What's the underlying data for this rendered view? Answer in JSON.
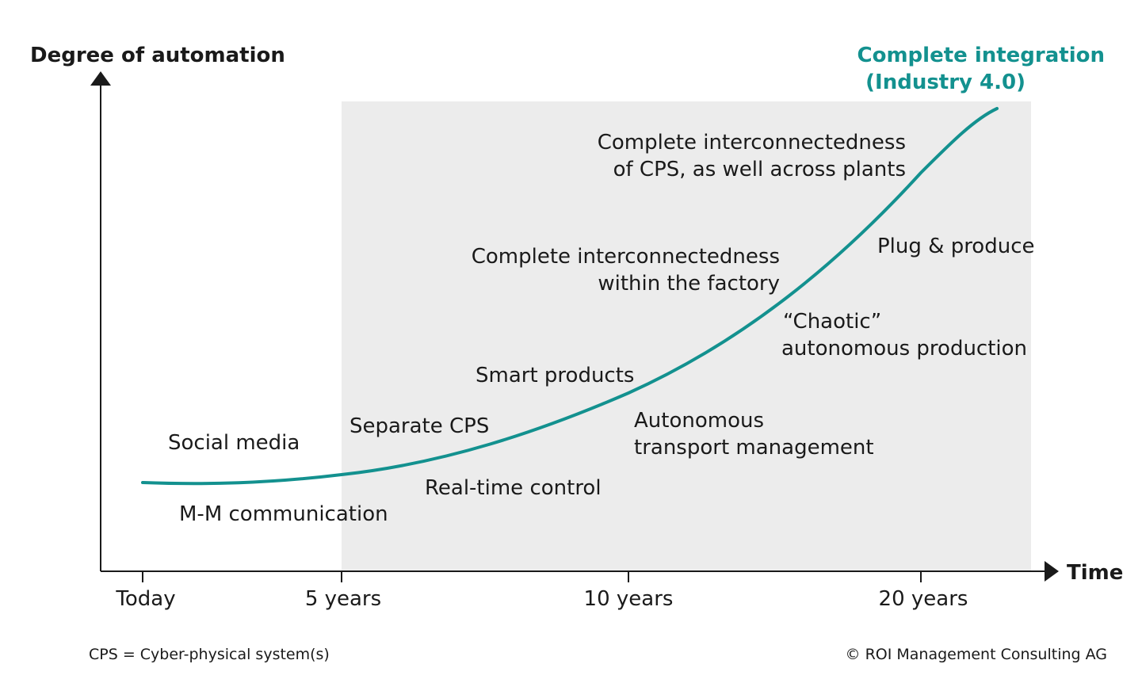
{
  "colors": {
    "accent": "#13918f",
    "shade": "#ececec",
    "axis": "#1a1a1a"
  },
  "axes": {
    "y_title": "Degree of automation",
    "x_title": "Time"
  },
  "ticks": [
    "Today",
    "5 years",
    "10 years",
    "20 years"
  ],
  "endpoint": {
    "line1": "Complete integration",
    "line2": "(Industry 4.0)"
  },
  "milestones": {
    "social_media": "Social media",
    "mm_communication": "M-M communication",
    "separate_cps": "Separate CPS",
    "realtime_control": "Real-time control",
    "smart_products": "Smart products",
    "autonomous_transport_1": "Autonomous",
    "autonomous_transport_2": "transport management",
    "interconnect_factory_1": "Complete interconnectedness",
    "interconnect_factory_2": "within the factory",
    "chaotic_1": "“Chaotic”",
    "chaotic_2": "autonomous production",
    "plug_produce": "Plug & produce",
    "interconnect_plants_1": "Complete interconnectedness",
    "interconnect_plants_2": "of CPS, as well across plants"
  },
  "footer": {
    "definition": "CPS = Cyber-physical system(s)",
    "copyright": "© ROI Management Consulting AG"
  }
}
